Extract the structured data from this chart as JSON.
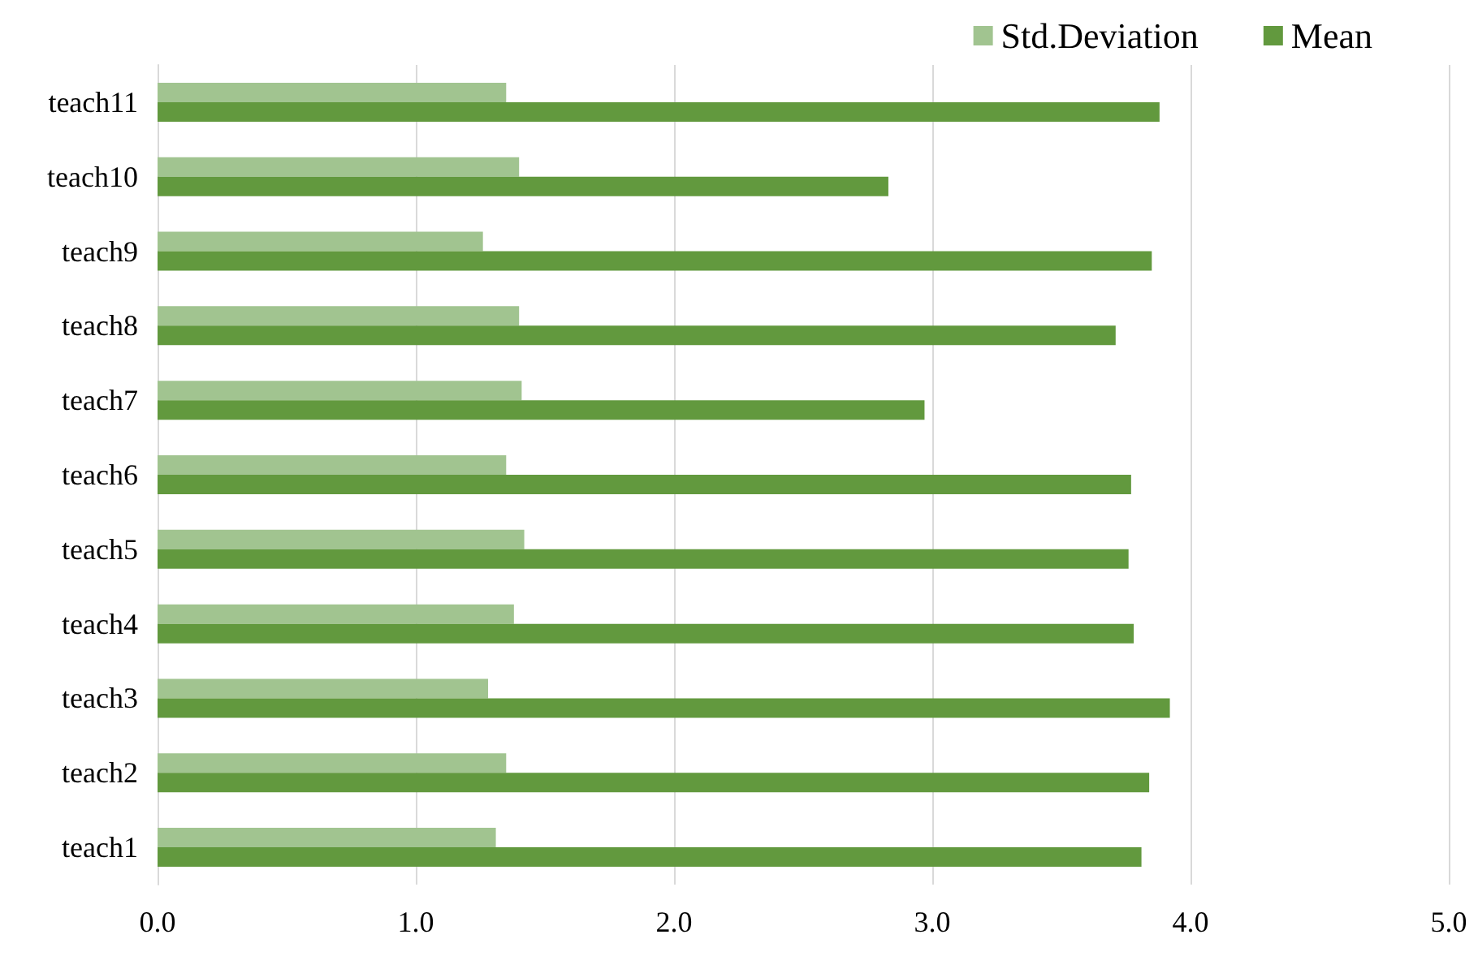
{
  "chart_data": {
    "type": "bar",
    "orientation": "horizontal",
    "categories": [
      "teach11",
      "teach10",
      "teach9",
      "teach8",
      "teach7",
      "teach6",
      "teach5",
      "teach4",
      "teach3",
      "teach2",
      "teach1"
    ],
    "series": [
      {
        "name": "Std.Deviation",
        "color": "#a1c490",
        "values": [
          1.35,
          1.4,
          1.26,
          1.4,
          1.41,
          1.35,
          1.42,
          1.38,
          1.28,
          1.35,
          1.31
        ]
      },
      {
        "name": "Mean",
        "color": "#62993e",
        "values": [
          3.88,
          2.83,
          3.85,
          3.71,
          2.97,
          3.77,
          3.76,
          3.78,
          3.92,
          3.84,
          3.81
        ]
      }
    ],
    "xlim": [
      0,
      5
    ],
    "xticks": [
      {
        "value": 0,
        "label": "0.0"
      },
      {
        "value": 1,
        "label": "1.0"
      },
      {
        "value": 2,
        "label": "2.0"
      },
      {
        "value": 3,
        "label": "3.0"
      },
      {
        "value": 4,
        "label": "4.0"
      },
      {
        "value": 5,
        "label": "5.0"
      }
    ],
    "grid": "x",
    "legend": "top right"
  }
}
